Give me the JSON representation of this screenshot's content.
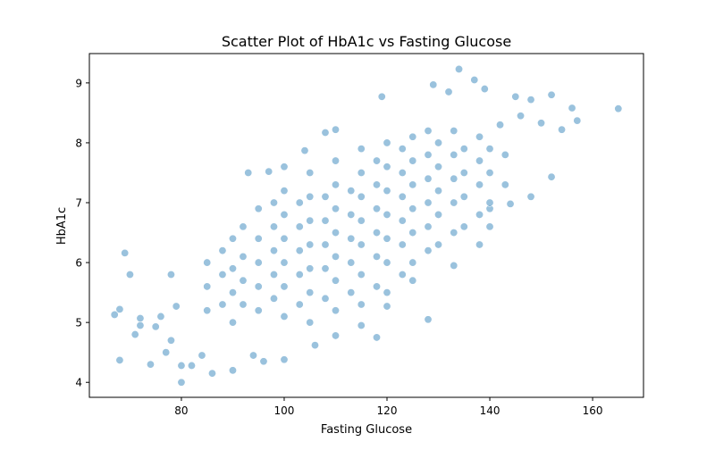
{
  "chart_data": {
    "type": "scatter",
    "title": "Scatter Plot of HbA1c vs Fasting Glucose",
    "xlabel": "Fasting Glucose",
    "ylabel": "HbA1c",
    "xlim": [
      62.1,
      169.9
    ],
    "ylim": [
      3.75,
      9.49
    ],
    "xticks": [
      80,
      100,
      120,
      140,
      160
    ],
    "yticks": [
      4,
      5,
      6,
      7,
      8,
      9
    ],
    "grid": false,
    "marker_color": "#1f77b4",
    "marker_alpha": 0.45,
    "marker_edge_color": "#ffffff",
    "points": [
      [
        67,
        5.13
      ],
      [
        68,
        4.37
      ],
      [
        68,
        5.22
      ],
      [
        69,
        6.16
      ],
      [
        70,
        5.8
      ],
      [
        71,
        4.8
      ],
      [
        72,
        5.07
      ],
      [
        72,
        4.95
      ],
      [
        74,
        4.3
      ],
      [
        75,
        4.93
      ],
      [
        76,
        5.1
      ],
      [
        77,
        4.5
      ],
      [
        78,
        5.8
      ],
      [
        78,
        4.7
      ],
      [
        79,
        5.27
      ],
      [
        80,
        4.28
      ],
      [
        80,
        4.0
      ],
      [
        82,
        4.28
      ],
      [
        84,
        4.45
      ],
      [
        86,
        4.15
      ],
      [
        90,
        4.2
      ],
      [
        93,
        7.5
      ],
      [
        97,
        7.52
      ],
      [
        100,
        7.6
      ],
      [
        104,
        7.87
      ],
      [
        108,
        8.17
      ],
      [
        110,
        8.22
      ],
      [
        119,
        8.77
      ],
      [
        128,
        5.05
      ],
      [
        129,
        8.97
      ],
      [
        132,
        8.85
      ],
      [
        134,
        9.23
      ],
      [
        137,
        9.05
      ],
      [
        139,
        8.9
      ],
      [
        145,
        8.77
      ],
      [
        148,
        8.72
      ],
      [
        152,
        8.8
      ],
      [
        152,
        7.43
      ],
      [
        154,
        8.22
      ],
      [
        156,
        8.58
      ],
      [
        157,
        8.37
      ],
      [
        165,
        8.57
      ],
      [
        148,
        7.1
      ],
      [
        144,
        6.98
      ],
      [
        140,
        6.9
      ],
      [
        140,
        6.6
      ],
      [
        138,
        6.3
      ],
      [
        133,
        5.95
      ],
      [
        125,
        5.7
      ],
      [
        120,
        5.27
      ],
      [
        118,
        4.75
      ],
      [
        115,
        4.95
      ],
      [
        110,
        4.78
      ],
      [
        106,
        4.62
      ],
      [
        100,
        4.38
      ],
      [
        96,
        4.35
      ],
      [
        94,
        4.45
      ],
      [
        150,
        8.33
      ],
      [
        146,
        8.45
      ],
      [
        142,
        8.3
      ],
      [
        85,
        5.2
      ],
      [
        85,
        5.6
      ],
      [
        85,
        6.0
      ],
      [
        88,
        5.3
      ],
      [
        88,
        5.8
      ],
      [
        88,
        6.2
      ],
      [
        90,
        5.0
      ],
      [
        90,
        5.5
      ],
      [
        90,
        5.9
      ],
      [
        90,
        6.4
      ],
      [
        92,
        5.3
      ],
      [
        92,
        5.7
      ],
      [
        92,
        6.1
      ],
      [
        92,
        6.6
      ],
      [
        95,
        5.2
      ],
      [
        95,
        5.6
      ],
      [
        95,
        6.0
      ],
      [
        95,
        6.4
      ],
      [
        95,
        6.9
      ],
      [
        98,
        5.4
      ],
      [
        98,
        5.8
      ],
      [
        98,
        6.2
      ],
      [
        98,
        6.6
      ],
      [
        98,
        7.0
      ],
      [
        100,
        5.1
      ],
      [
        100,
        5.6
      ],
      [
        100,
        6.0
      ],
      [
        100,
        6.4
      ],
      [
        100,
        6.8
      ],
      [
        100,
        7.2
      ],
      [
        103,
        5.3
      ],
      [
        103,
        5.8
      ],
      [
        103,
        6.2
      ],
      [
        103,
        6.6
      ],
      [
        103,
        7.0
      ],
      [
        105,
        5.0
      ],
      [
        105,
        5.5
      ],
      [
        105,
        5.9
      ],
      [
        105,
        6.3
      ],
      [
        105,
        6.7
      ],
      [
        105,
        7.1
      ],
      [
        105,
        7.5
      ],
      [
        108,
        5.4
      ],
      [
        108,
        5.9
      ],
      [
        108,
        6.3
      ],
      [
        108,
        6.7
      ],
      [
        108,
        7.1
      ],
      [
        110,
        5.2
      ],
      [
        110,
        5.7
      ],
      [
        110,
        6.1
      ],
      [
        110,
        6.5
      ],
      [
        110,
        6.9
      ],
      [
        110,
        7.3
      ],
      [
        110,
        7.7
      ],
      [
        113,
        5.5
      ],
      [
        113,
        6.0
      ],
      [
        113,
        6.4
      ],
      [
        113,
        6.8
      ],
      [
        113,
        7.2
      ],
      [
        115,
        5.3
      ],
      [
        115,
        5.8
      ],
      [
        115,
        6.3
      ],
      [
        115,
        6.7
      ],
      [
        115,
        7.1
      ],
      [
        115,
        7.5
      ],
      [
        115,
        7.9
      ],
      [
        118,
        5.6
      ],
      [
        118,
        6.1
      ],
      [
        118,
        6.5
      ],
      [
        118,
        6.9
      ],
      [
        118,
        7.3
      ],
      [
        118,
        7.7
      ],
      [
        120,
        5.5
      ],
      [
        120,
        6.0
      ],
      [
        120,
        6.4
      ],
      [
        120,
        6.8
      ],
      [
        120,
        7.2
      ],
      [
        120,
        7.6
      ],
      [
        120,
        8.0
      ],
      [
        123,
        5.8
      ],
      [
        123,
        6.3
      ],
      [
        123,
        6.7
      ],
      [
        123,
        7.1
      ],
      [
        123,
        7.5
      ],
      [
        123,
        7.9
      ],
      [
        125,
        6.0
      ],
      [
        125,
        6.5
      ],
      [
        125,
        6.9
      ],
      [
        125,
        7.3
      ],
      [
        125,
        7.7
      ],
      [
        125,
        8.1
      ],
      [
        128,
        6.2
      ],
      [
        128,
        6.6
      ],
      [
        128,
        7.0
      ],
      [
        128,
        7.4
      ],
      [
        128,
        7.8
      ],
      [
        128,
        8.2
      ],
      [
        130,
        6.3
      ],
      [
        130,
        6.8
      ],
      [
        130,
        7.2
      ],
      [
        130,
        7.6
      ],
      [
        130,
        8.0
      ],
      [
        133,
        6.5
      ],
      [
        133,
        7.0
      ],
      [
        133,
        7.4
      ],
      [
        133,
        7.8
      ],
      [
        133,
        8.2
      ],
      [
        135,
        6.6
      ],
      [
        135,
        7.1
      ],
      [
        135,
        7.5
      ],
      [
        135,
        7.9
      ],
      [
        138,
        6.8
      ],
      [
        138,
        7.3
      ],
      [
        138,
        7.7
      ],
      [
        138,
        8.1
      ],
      [
        140,
        7.0
      ],
      [
        140,
        7.5
      ],
      [
        140,
        7.9
      ],
      [
        143,
        7.3
      ],
      [
        143,
        7.8
      ]
    ]
  }
}
